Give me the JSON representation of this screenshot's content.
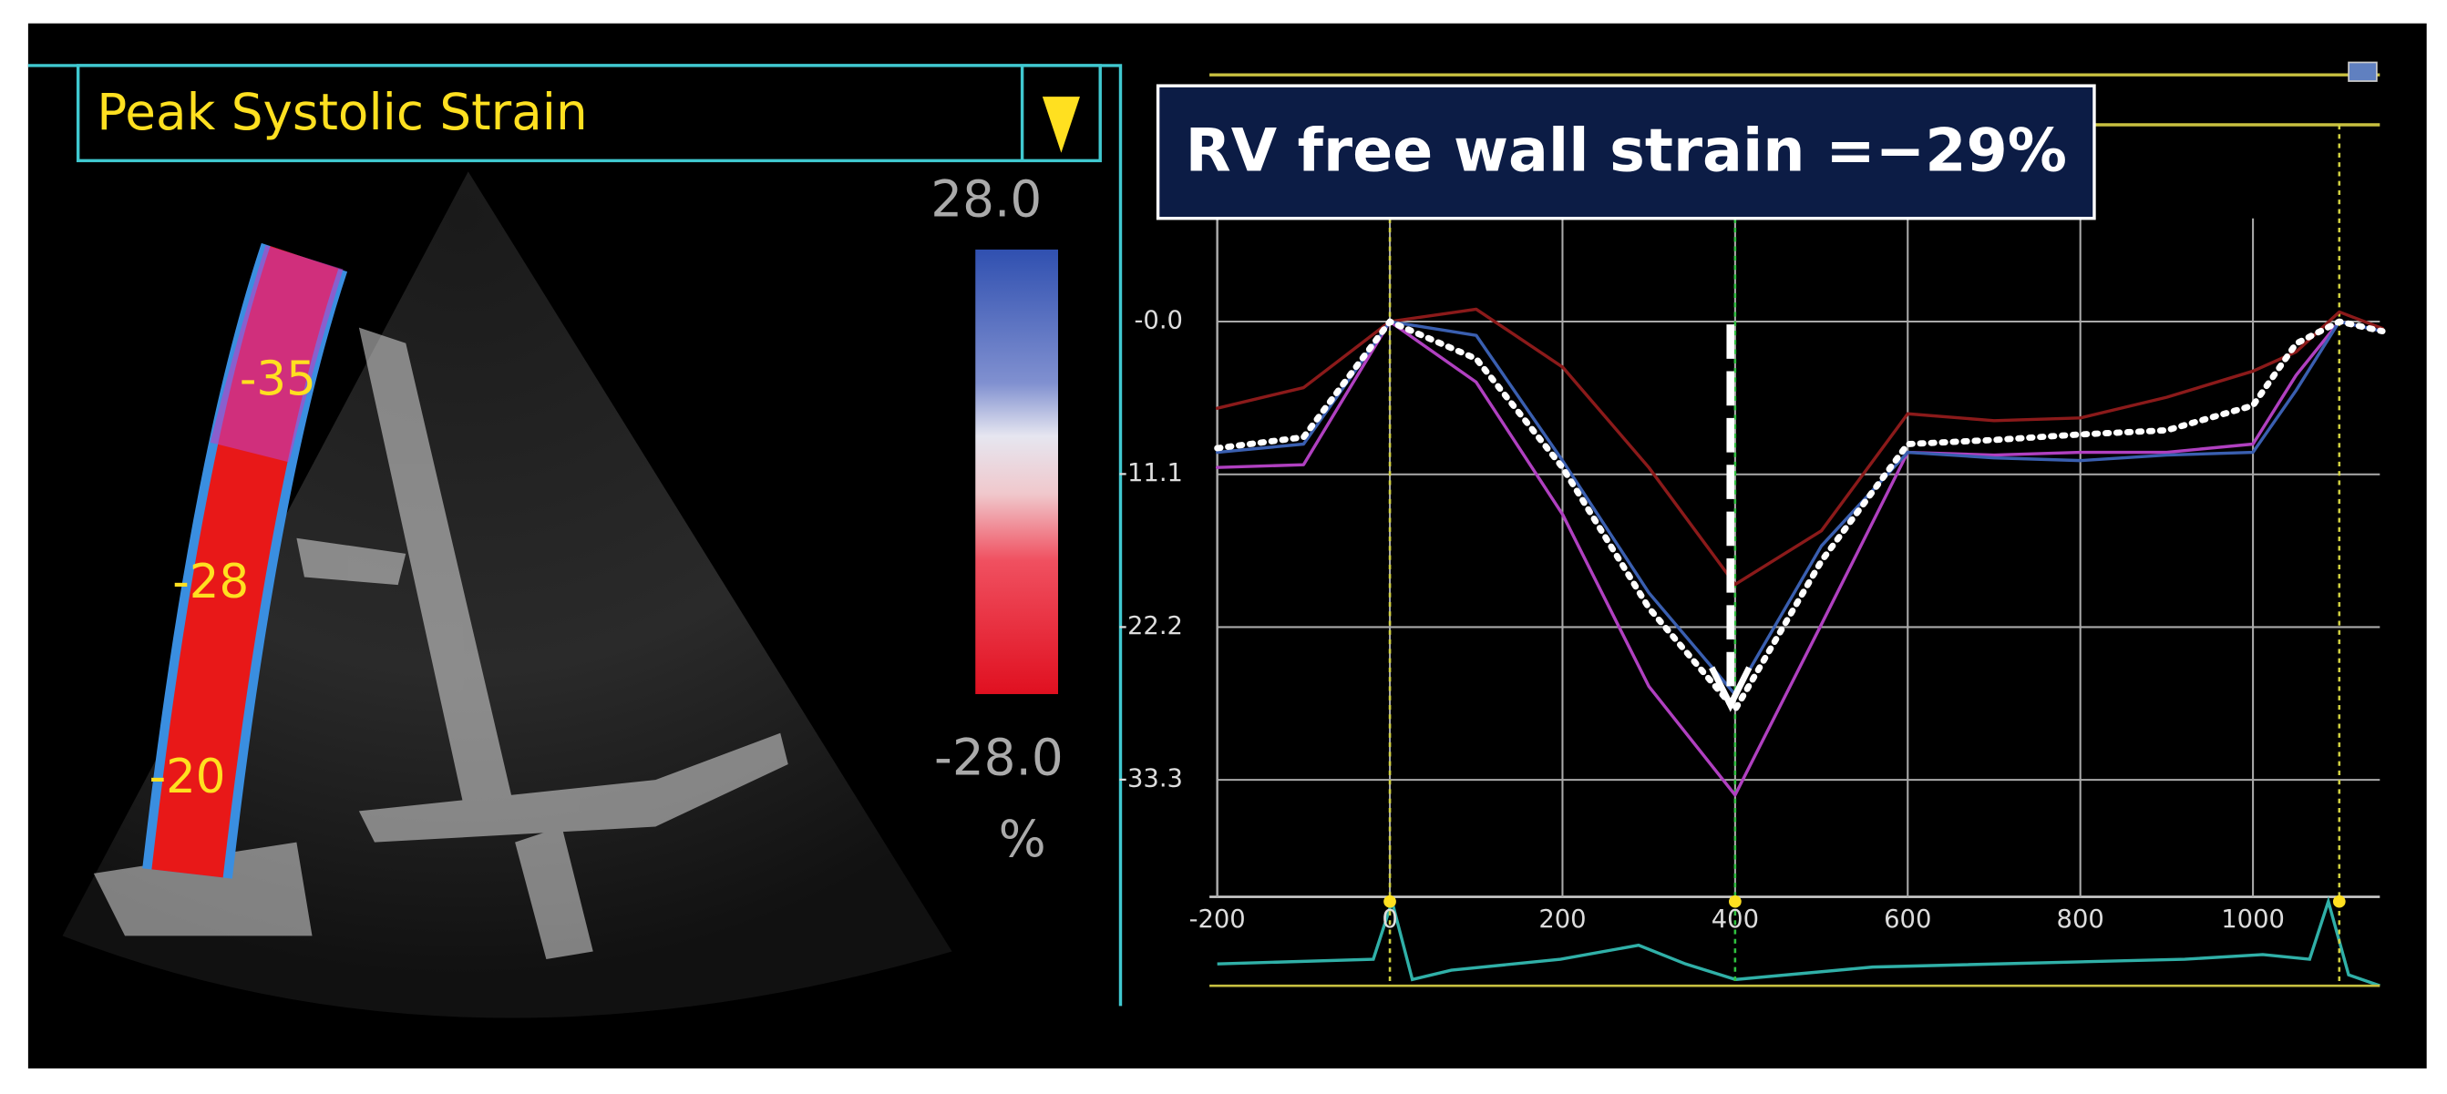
{
  "left_panel": {
    "title": "Peak Systolic Strain",
    "scale_max_label": "28.0",
    "scale_min_label": "-28.0",
    "scale_unit": "%",
    "segment_labels": [
      "-35",
      "-28",
      "-20"
    ]
  },
  "chart_data": {
    "type": "line",
    "annotation": "RV free wall strain =−29%",
    "x": [
      -200,
      -100,
      0,
      100,
      200,
      300,
      400,
      500,
      600,
      700,
      800,
      900,
      1000,
      1050,
      1100,
      1150
    ],
    "series": [
      {
        "color": "#8b1a1a",
        "line_style": "solid",
        "values": [
          -6.3,
          -4.8,
          0,
          0.9,
          -3.3,
          -10.6,
          -19.1,
          -15.2,
          -6.7,
          -7.2,
          -7.0,
          -5.5,
          -3.6,
          -2.2,
          0.7,
          -0.5
        ]
      },
      {
        "color": "#b040c0",
        "line_style": "solid",
        "values": [
          -10.6,
          -10.4,
          0,
          -4.4,
          -14.0,
          -26.5,
          -34.4,
          -22.0,
          -9.5,
          -9.7,
          -9.5,
          -9.5,
          -8.9,
          -3.9,
          0,
          -0.7
        ]
      },
      {
        "color": "#3a5fb0",
        "line_style": "solid",
        "values": [
          -9.5,
          -8.9,
          0,
          -1.0,
          -10.1,
          -19.7,
          -27.1,
          -16.3,
          -9.5,
          -9.9,
          -10.1,
          -9.7,
          -9.5,
          -5.0,
          0,
          -0.7
        ]
      },
      {
        "color": "#ffffff",
        "line_style": "dotted",
        "values": [
          -9.2,
          -8.4,
          0,
          -2.7,
          -10.6,
          -20.8,
          -28.2,
          -17.4,
          -8.9,
          -8.6,
          -8.2,
          -7.9,
          -6.1,
          -1.6,
          0,
          -0.7
        ]
      }
    ],
    "marker_lines": [
      0,
      400,
      1100
    ],
    "xlim": [
      -200,
      1147
    ],
    "ylim": [
      -41.8,
      7.5
    ],
    "xticks": [
      -200,
      0,
      200,
      400,
      600,
      800,
      1000
    ],
    "yticks": [
      {
        "value": 0,
        "label": "-0.0"
      },
      -11.1,
      -22.2,
      -33.3
    ],
    "grid": true
  }
}
